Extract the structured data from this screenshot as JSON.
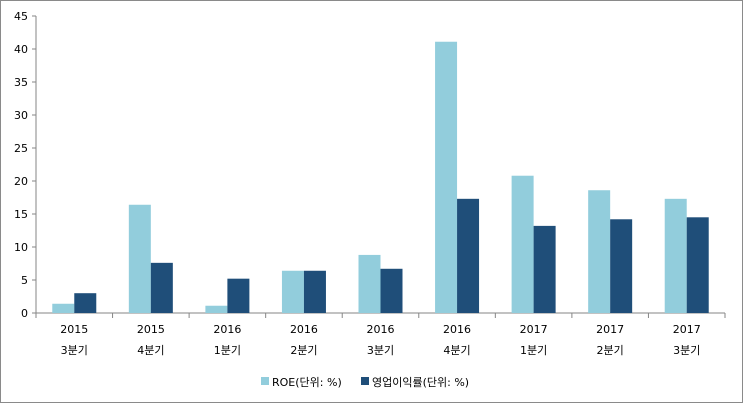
{
  "chart_data": {
    "type": "bar",
    "title": "",
    "xlabel": "",
    "ylabel": "",
    "ylim": [
      0,
      45
    ],
    "yticks": [
      0,
      5,
      10,
      15,
      20,
      25,
      30,
      35,
      40,
      45
    ],
    "grid": false,
    "legend_position": "bottom",
    "categories": [
      {
        "year": "2015",
        "quarter": "3분기"
      },
      {
        "year": "2015",
        "quarter": "4분기"
      },
      {
        "year": "2016",
        "quarter": "1분기"
      },
      {
        "year": "2016",
        "quarter": "2분기"
      },
      {
        "year": "2016",
        "quarter": "3분기"
      },
      {
        "year": "2016",
        "quarter": "4분기"
      },
      {
        "year": "2017",
        "quarter": "1분기"
      },
      {
        "year": "2017",
        "quarter": "2분기"
      },
      {
        "year": "2017",
        "quarter": "3분기"
      }
    ],
    "series": [
      {
        "name": "ROE(단위: %)",
        "color": "#92cddc",
        "values": [
          1.4,
          16.4,
          1.1,
          6.4,
          8.8,
          41.1,
          20.8,
          18.6,
          17.3
        ]
      },
      {
        "name": "영업이익률(단위: %)",
        "color": "#1f4e79",
        "values": [
          3.0,
          7.6,
          5.2,
          6.4,
          6.7,
          17.3,
          13.2,
          14.2,
          14.5
        ]
      }
    ]
  }
}
